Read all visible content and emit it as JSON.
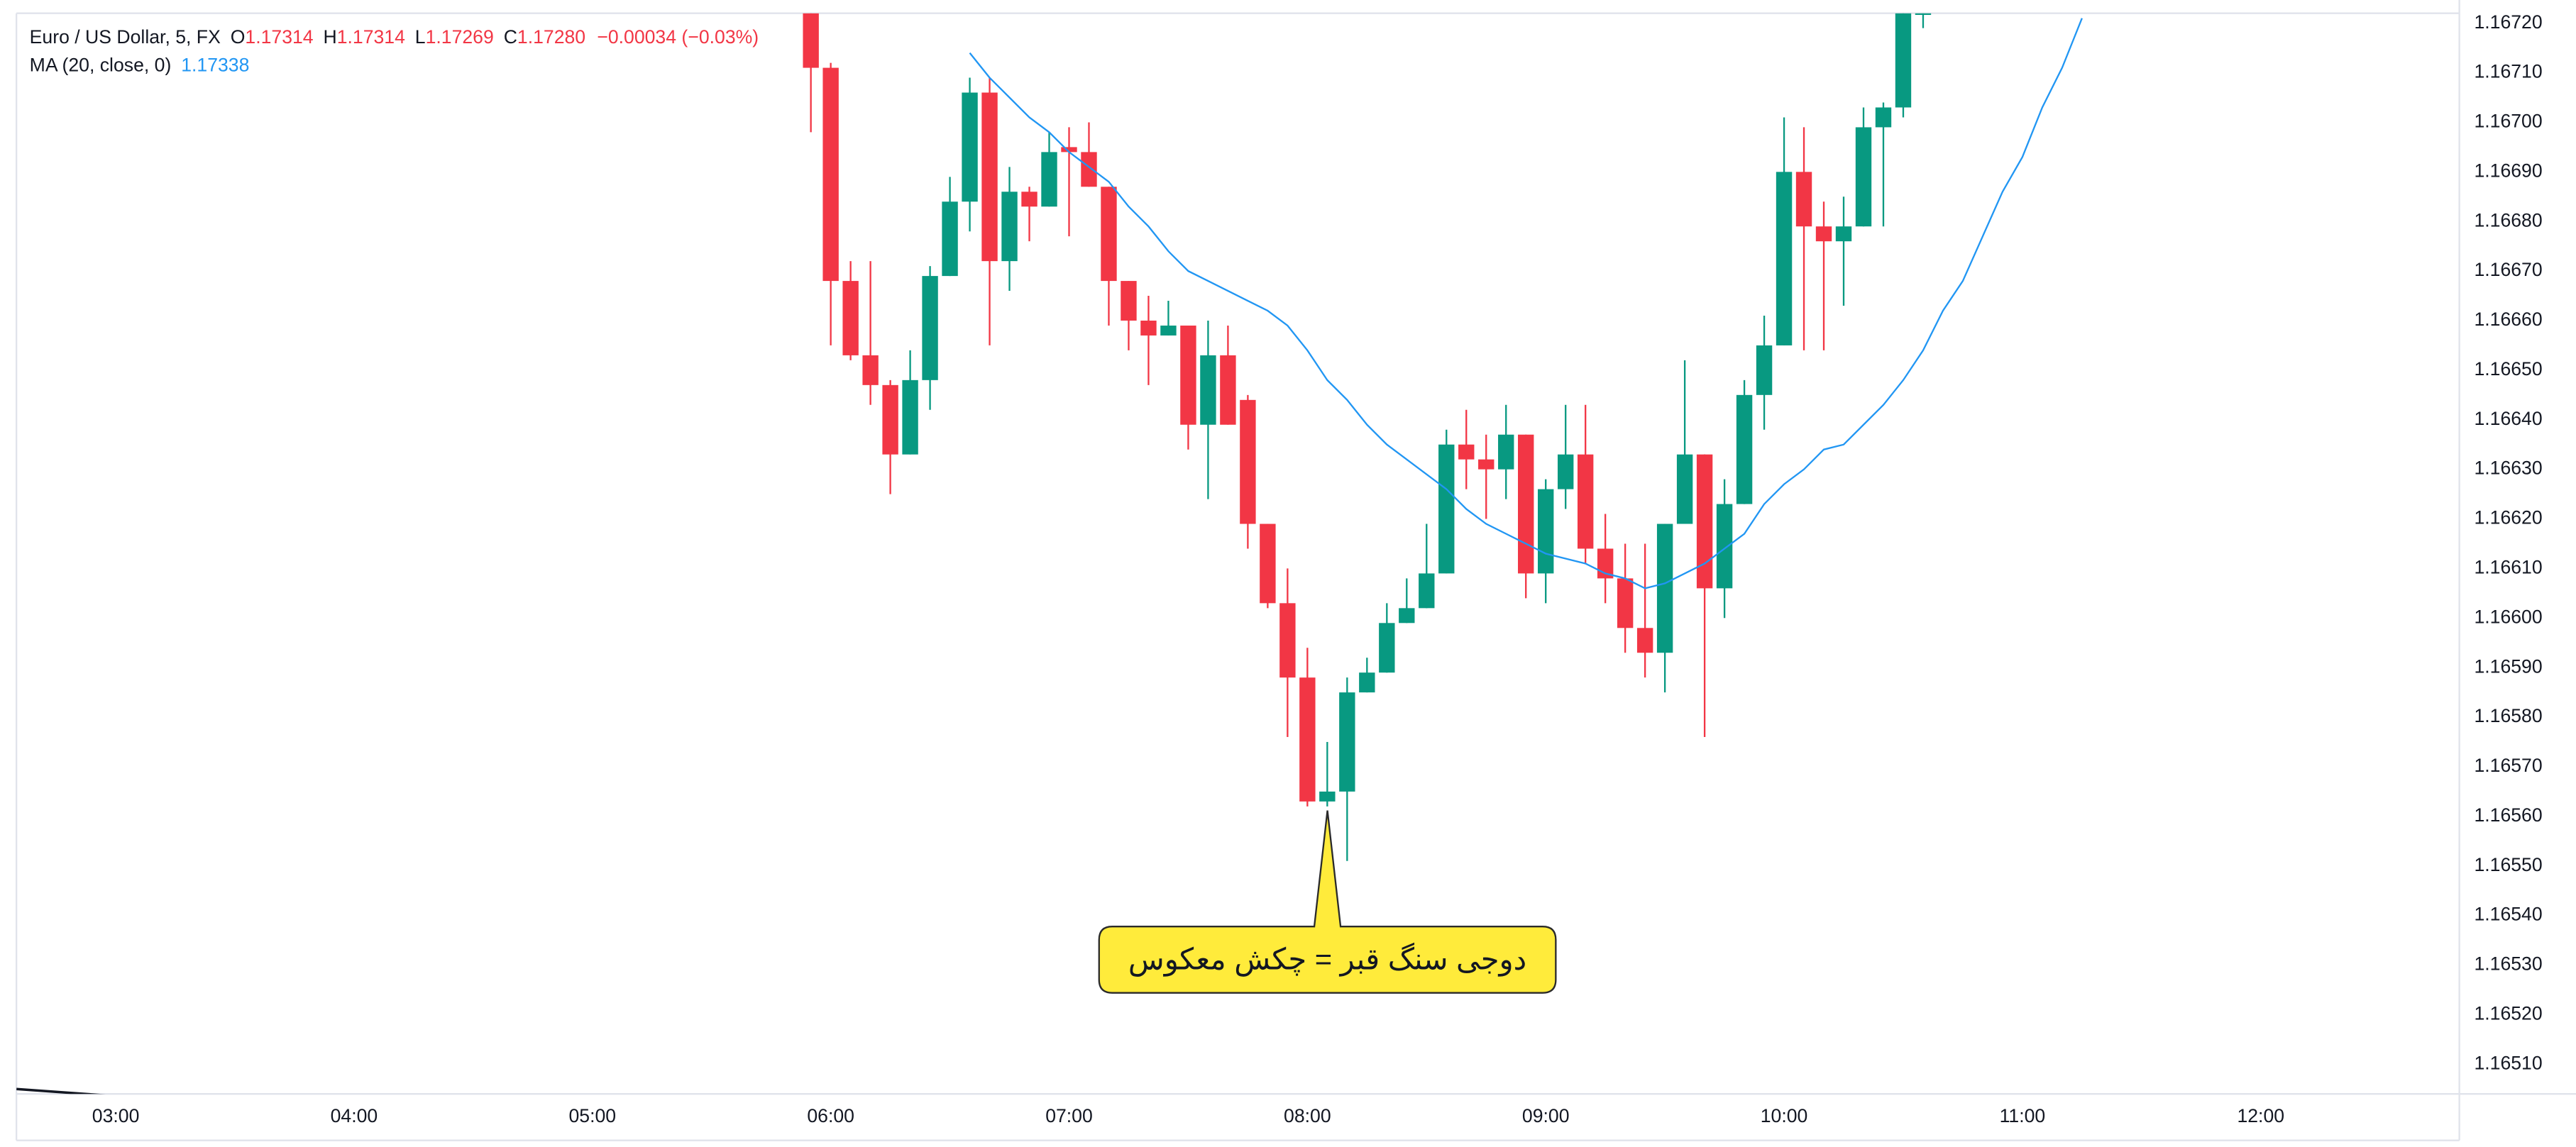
{
  "chart_data": {
    "type": "candlestick",
    "header": {
      "symbol": "Euro / US Dollar, 5, FX",
      "ohlc": [
        {
          "label": "O",
          "value": "1.17314"
        },
        {
          "label": "H",
          "value": "1.17314"
        },
        {
          "label": "L",
          "value": "1.17269"
        },
        {
          "label": "C",
          "value": "1.17280"
        }
      ],
      "change": "−0.00034 (−0.03%)",
      "indicator": "MA (20, close, 0)",
      "indicator_value": "1.17338"
    },
    "annotation": "دوجی سنگ قبر = چکش معکوس",
    "up_color": "#089981",
    "down_color": "#f23645",
    "x": [
      "05:55",
      "06:00",
      "06:05",
      "06:10",
      "06:15",
      "06:20",
      "06:25",
      "06:30",
      "06:35",
      "06:40",
      "06:45",
      "06:50",
      "06:55",
      "07:00",
      "07:05",
      "07:10",
      "07:15",
      "07:20",
      "07:25",
      "07:30",
      "07:35",
      "07:40",
      "07:45",
      "07:50",
      "07:55",
      "08:00",
      "08:05",
      "08:10",
      "08:15",
      "08:20",
      "08:25",
      "08:30",
      "08:35",
      "08:40",
      "08:45",
      "08:50",
      "08:55",
      "09:00",
      "09:05",
      "09:10",
      "09:15",
      "09:20",
      "09:25",
      "09:30",
      "09:35",
      "09:40",
      "09:45",
      "09:50",
      "09:55",
      "10:00",
      "10:05",
      "10:10",
      "10:15",
      "10:20",
      "10:25",
      "10:30",
      "10:35",
      "10:40",
      "10:45",
      "10:50",
      "10:55",
      "11:00",
      "11:05",
      "11:10",
      "11:15"
    ],
    "open": [
      1.16722,
      1.16711,
      1.16668,
      1.16653,
      1.16647,
      1.16633,
      1.16648,
      1.16669,
      1.16684,
      1.16706,
      1.16672,
      1.16686,
      1.16683,
      1.16695,
      1.16694,
      1.16687,
      1.16668,
      1.1666,
      1.16657,
      1.16659,
      1.16639,
      1.16653,
      1.16644,
      1.16619,
      1.16603,
      1.16588,
      1.16563,
      1.16565,
      1.16585,
      1.16589,
      1.16599,
      1.16602,
      1.16609,
      1.16635,
      1.16632,
      1.1663,
      1.16637,
      1.16609,
      1.16626,
      1.16633,
      1.16614,
      1.16608,
      1.16598,
      1.16593,
      1.16619,
      1.16633,
      1.16606,
      1.16623,
      1.16645,
      1.16655,
      1.1669,
      1.16679,
      1.16676,
      1.16679,
      1.16699,
      1.16703,
      1.16722,
      null,
      null,
      null,
      null,
      null,
      null,
      null,
      null
    ],
    "high": [
      1.16722,
      1.16712,
      1.16672,
      1.16672,
      1.16648,
      1.16654,
      1.16671,
      1.16689,
      1.16709,
      1.16709,
      1.16691,
      1.16687,
      1.16698,
      1.16699,
      1.167,
      1.16687,
      1.16668,
      1.16665,
      1.16664,
      1.16659,
      1.1666,
      1.16659,
      1.16645,
      1.16619,
      1.1661,
      1.16594,
      1.16575,
      1.16588,
      1.16592,
      1.16603,
      1.16608,
      1.16619,
      1.16638,
      1.16642,
      1.16637,
      1.16643,
      1.16637,
      1.16628,
      1.16643,
      1.16643,
      1.16621,
      1.16615,
      1.16615,
      1.16619,
      1.16652,
      1.16633,
      1.16628,
      1.16648,
      1.16661,
      1.16701,
      1.16699,
      1.16684,
      1.16685,
      1.16703,
      1.16704,
      1.16722,
      1.16722,
      null,
      null,
      null,
      null,
      null,
      null,
      null,
      null
    ],
    "low": [
      1.16698,
      1.16655,
      1.16652,
      1.16643,
      1.16625,
      1.16633,
      1.16642,
      1.16669,
      1.16678,
      1.16655,
      1.16666,
      1.16676,
      1.16683,
      1.16677,
      1.16687,
      1.16659,
      1.16654,
      1.16647,
      1.16657,
      1.16634,
      1.16624,
      1.16639,
      1.16614,
      1.16602,
      1.16576,
      1.16562,
      1.16562,
      1.16551,
      1.16585,
      1.16589,
      1.16599,
      1.16602,
      1.16609,
      1.16626,
      1.1662,
      1.16624,
      1.16604,
      1.16603,
      1.16622,
      1.16611,
      1.16603,
      1.16593,
      1.16588,
      1.16585,
      1.16619,
      1.16576,
      1.166,
      1.16623,
      1.16638,
      1.16655,
      1.16654,
      1.16654,
      1.16663,
      1.16679,
      1.16679,
      1.16701,
      1.16719,
      null,
      null,
      null,
      null,
      null,
      null,
      null,
      null
    ],
    "close": [
      1.16711,
      1.16668,
      1.16653,
      1.16647,
      1.16633,
      1.16648,
      1.16669,
      1.16684,
      1.16706,
      1.16672,
      1.16686,
      1.16683,
      1.16694,
      1.16694,
      1.16687,
      1.16668,
      1.1666,
      1.16657,
      1.16659,
      1.16639,
      1.16653,
      1.16639,
      1.16619,
      1.16603,
      1.16588,
      1.16563,
      1.16565,
      1.16585,
      1.16589,
      1.16599,
      1.16602,
      1.16609,
      1.16635,
      1.16632,
      1.1663,
      1.16637,
      1.16609,
      1.16626,
      1.16633,
      1.16614,
      1.16608,
      1.16598,
      1.16593,
      1.16619,
      1.16633,
      1.16606,
      1.16623,
      1.16645,
      1.16655,
      1.1669,
      1.16679,
      1.16676,
      1.16679,
      1.16699,
      1.16703,
      1.16722,
      1.16722,
      null,
      null,
      null,
      null,
      null,
      null,
      null,
      null
    ],
    "ma": {
      "color": "#2196f3",
      "values": [
        null,
        null,
        null,
        null,
        null,
        null,
        null,
        null,
        1.16714,
        1.16709,
        1.16705,
        1.16701,
        1.16698,
        1.16694,
        1.16691,
        1.16688,
        1.16683,
        1.16679,
        1.16674,
        1.1667,
        1.16668,
        1.16666,
        1.16664,
        1.16662,
        1.16659,
        1.16654,
        1.16648,
        1.16644,
        1.16639,
        1.16635,
        1.16632,
        1.16629,
        1.16626,
        1.16622,
        1.16619,
        1.16617,
        1.16615,
        1.16613,
        1.16612,
        1.16611,
        1.16609,
        1.16608,
        1.16606,
        1.16607,
        1.16609,
        1.16611,
        1.16614,
        1.16617,
        1.16623,
        1.16627,
        1.1663,
        1.16634,
        1.16635,
        1.16639,
        1.16643,
        1.16648,
        1.16654,
        1.16662,
        1.16668,
        1.16677,
        1.16686,
        1.16693,
        1.16703,
        1.16711,
        1.16721
      ]
    },
    "xlim": [
      "02:35",
      "12:50"
    ],
    "xticks": [
      "03:00",
      "04:00",
      "05:00",
      "06:00",
      "07:00",
      "08:00",
      "09:00",
      "10:00",
      "11:00",
      "12:00"
    ],
    "ylim": [
      1.16504,
      1.16722
    ],
    "yticks": [
      {
        "value": 1.1672,
        "label": "1.16720"
      },
      {
        "value": 1.1671,
        "label": "1.16710"
      },
      {
        "value": 1.167,
        "label": "1.16700"
      },
      {
        "value": 1.1669,
        "label": "1.16690"
      },
      {
        "value": 1.1668,
        "label": "1.16680"
      },
      {
        "value": 1.1667,
        "label": "1.16670"
      },
      {
        "value": 1.1666,
        "label": "1.16660"
      },
      {
        "value": 1.1665,
        "label": "1.16650"
      },
      {
        "value": 1.1664,
        "label": "1.16640"
      },
      {
        "value": 1.1663,
        "label": "1.16630"
      },
      {
        "value": 1.1662,
        "label": "1.16620"
      },
      {
        "value": 1.1661,
        "label": "1.16610"
      },
      {
        "value": 1.166,
        "label": "1.16600"
      },
      {
        "value": 1.1659,
        "label": "1.16590"
      },
      {
        "value": 1.1658,
        "label": "1.16580"
      },
      {
        "value": 1.1657,
        "label": "1.16570"
      },
      {
        "value": 1.1656,
        "label": "1.16560"
      },
      {
        "value": 1.1655,
        "label": "1.16550"
      },
      {
        "value": 1.1654,
        "label": "1.16540"
      },
      {
        "value": 1.1653,
        "label": "1.16530"
      },
      {
        "value": 1.1652,
        "label": "1.16520"
      },
      {
        "value": 1.1651,
        "label": "1.16510"
      }
    ],
    "grid": false
  }
}
